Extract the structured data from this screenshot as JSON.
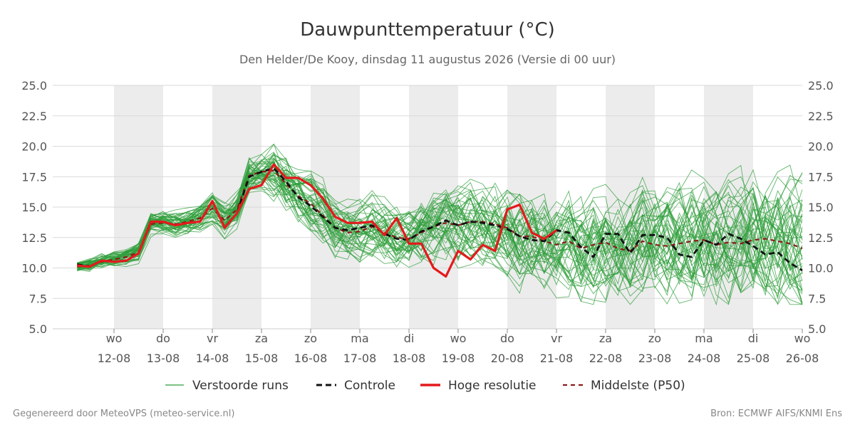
{
  "chart_data": {
    "type": "line",
    "title": "Dauwpunttemperatuur (°C)",
    "subtitle": "Den Helder/De Kooy, dinsdag 11 augustus 2026 (Versie di 00 uur)",
    "ylim": [
      5.0,
      25.0
    ],
    "y_ticks": [
      "5.0",
      "7.5",
      "10.0",
      "12.5",
      "15.0",
      "17.5",
      "20.0",
      "22.5",
      "25.0"
    ],
    "grid": "horizontal",
    "x_ticks": [
      {
        "day": "wo",
        "date": "12-08"
      },
      {
        "day": "do",
        "date": "13-08"
      },
      {
        "day": "vr",
        "date": "14-08"
      },
      {
        "day": "za",
        "date": "15-08"
      },
      {
        "day": "zo",
        "date": "16-08"
      },
      {
        "day": "ma",
        "date": "17-08"
      },
      {
        "day": "di",
        "date": "18-08"
      },
      {
        "day": "wo",
        "date": "19-08"
      },
      {
        "day": "do",
        "date": "20-08"
      },
      {
        "day": "vr",
        "date": "21-08"
      },
      {
        "day": "za",
        "date": "22-08"
      },
      {
        "day": "zo",
        "date": "23-08"
      },
      {
        "day": "ma",
        "date": "24-08"
      },
      {
        "day": "di",
        "date": "25-08"
      },
      {
        "day": "wo",
        "date": "26-08"
      }
    ],
    "x_start": "11-08 06:00",
    "x_end": "26-08 00:00",
    "step_hours": 6,
    "weekend_shading": "alternate days shaded grey",
    "legend_position": "bottom",
    "legend": [
      "Verstoorde runs",
      "Controle",
      "Hoge resolutie",
      "Middelste (P50)"
    ],
    "series": [
      {
        "name": "Hoge resolutie",
        "color": "#e31a1c",
        "style": "solid",
        "values": [
          10.2,
          10.1,
          10.6,
          10.5,
          10.6,
          11.2,
          13.8,
          13.8,
          13.5,
          13.7,
          13.8,
          15.5,
          13.3,
          14.5,
          16.5,
          16.8,
          18.5,
          17.4,
          17.4,
          16.8,
          15.7,
          14.2,
          13.7,
          13.7,
          13.8,
          12.7,
          14.1,
          12.0,
          12.0,
          10.0,
          9.3,
          11.4,
          10.7,
          11.9,
          11.4,
          14.8,
          15.2,
          12.9,
          12.4,
          13.1
        ]
      },
      {
        "name": "Controle",
        "color": "#111111",
        "style": "dashed",
        "values": [
          10.3,
          10.1,
          10.6,
          10.5,
          10.6,
          11.2,
          13.8,
          13.8,
          13.5,
          13.7,
          13.8,
          15.5,
          13.3,
          14.5,
          17.5,
          17.9,
          18.2,
          17.1,
          15.8,
          15.1,
          14.2,
          13.3,
          13.1,
          13.3,
          13.5,
          12.8,
          12.4,
          12.3,
          13.0,
          13.4,
          13.9,
          13.5,
          13.8,
          13.7,
          13.5,
          13.2,
          12.6,
          12.3,
          12.2,
          13.1,
          12.9,
          11.7,
          10.9,
          12.8,
          12.8,
          11.2,
          12.7,
          12.7,
          12.5,
          11.1,
          10.9,
          12.3,
          11.9,
          12.8,
          12.4,
          11.8,
          11.1,
          11.3,
          10.4,
          9.8
        ]
      },
      {
        "name": "Middelste (P50)",
        "color": "#8b1a1a",
        "style": "dashed",
        "values": [
          10.1,
          10.2,
          10.5,
          10.7,
          10.9,
          11.3,
          13.6,
          13.7,
          13.6,
          13.8,
          14.1,
          14.9,
          13.9,
          14.8,
          17.6,
          17.9,
          18.0,
          16.9,
          15.9,
          15.3,
          14.3,
          13.3,
          12.9,
          13.0,
          13.4,
          12.9,
          12.5,
          12.4,
          12.9,
          13.4,
          13.7,
          13.5,
          13.8,
          13.8,
          13.6,
          13.3,
          12.6,
          12.6,
          12.2,
          11.9,
          12.2,
          11.6,
          11.9,
          12.1,
          11.6,
          11.4,
          12.2,
          11.9,
          11.8,
          12.0,
          12.2,
          12.3,
          11.9,
          12.1,
          12.0,
          12.3,
          12.4,
          12.2,
          12.0,
          11.6
        ]
      }
    ],
    "ensemble": {
      "name": "Verstoorde runs",
      "color": "#2e9e3a",
      "members": 50,
      "range_by_period": [
        {
          "until": "15-08",
          "min": 8.5,
          "max": 19.0
        },
        {
          "until": "18-08",
          "min": 11.0,
          "max": 18.5
        },
        {
          "until": "26-08",
          "min": 7.0,
          "max": 20.7
        }
      ]
    }
  },
  "footer": {
    "left": "Gegenereerd door MeteoVPS (meteo-service.nl)",
    "right": "Bron: ECMWF AIFS/KNMI Ens"
  }
}
